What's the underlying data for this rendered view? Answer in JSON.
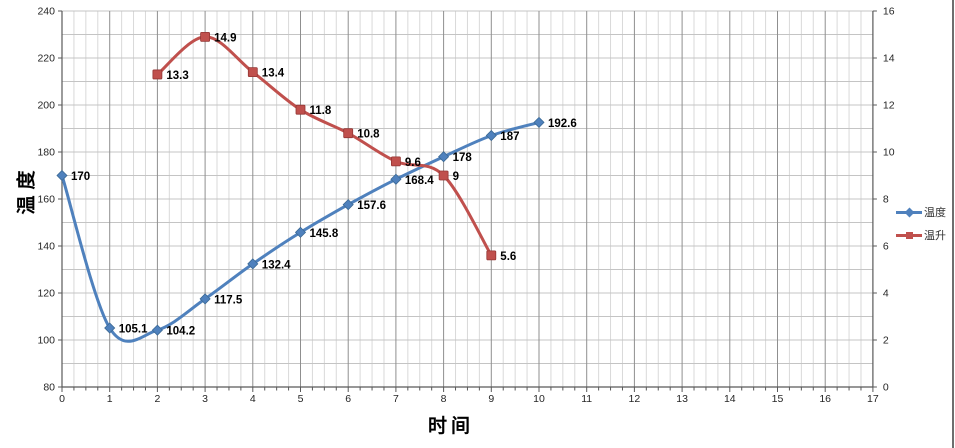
{
  "chart_data": {
    "type": "line",
    "title": "",
    "xlabel": "时间",
    "ylabel": "温度",
    "grid": {
      "minor_x_step": 0.25,
      "major_x_step": 1,
      "horizontal_step": 10,
      "grid_on": true
    },
    "axes": {
      "x": {
        "min": 0,
        "max": 17,
        "tick_values": [
          0,
          1,
          2,
          3,
          4,
          5,
          6,
          7,
          8,
          9,
          10,
          11,
          12,
          13,
          14,
          15,
          16,
          17
        ],
        "tick_labels": [
          "0",
          "1",
          "2",
          "3",
          "4",
          "5",
          "6",
          "7",
          "8",
          "9",
          "10",
          "11",
          "12",
          "13",
          "14",
          "15",
          "16",
          "17"
        ]
      },
      "left": {
        "min": 80,
        "max": 240,
        "tick_values": [
          80,
          100,
          120,
          140,
          160,
          180,
          200,
          220,
          240
        ],
        "tick_labels": [
          "80",
          "100",
          "120",
          "140",
          "160",
          "180",
          "200",
          "220",
          "240"
        ]
      },
      "right": {
        "min": 0,
        "max": 16,
        "tick_values": [
          0,
          2,
          4,
          6,
          8,
          10,
          12,
          14,
          16
        ],
        "tick_labels": [
          "0",
          "2",
          "4",
          "6",
          "8",
          "10",
          "12",
          "14",
          "16"
        ]
      }
    },
    "series": [
      {
        "name": "温度",
        "axis": "left",
        "marker": "diamond",
        "color": "#4F81BD",
        "marker_stroke": "#3A6893",
        "x": [
          0,
          1,
          2,
          3,
          4,
          5,
          6,
          7,
          8,
          9,
          10
        ],
        "values": [
          170,
          105.1,
          104.2,
          117.5,
          132.4,
          145.8,
          157.6,
          168.4,
          178,
          187,
          192.6
        ],
        "labels": [
          "170",
          "105.1",
          "104.2",
          "117.5",
          "132.4",
          "145.8",
          "157.6",
          "168.4",
          "178",
          "187",
          "192.6"
        ]
      },
      {
        "name": "温升",
        "axis": "right",
        "marker": "square",
        "color": "#C0504D",
        "marker_stroke": "#943634",
        "x": [
          2,
          3,
          4,
          5,
          6,
          7,
          8,
          9
        ],
        "values": [
          13.3,
          14.9,
          13.4,
          11.8,
          10.8,
          9.6,
          9,
          5.6
        ],
        "labels": [
          "13.3",
          "14.9",
          "13.4",
          "11.8",
          "10.8",
          "9.6",
          "9",
          "5.6"
        ]
      }
    ],
    "legend": {
      "position": "right",
      "items": [
        {
          "label": "温度",
          "color": "#4F81BD",
          "marker": "diamond"
        },
        {
          "label": "温升",
          "color": "#C0504D",
          "marker": "square"
        }
      ]
    },
    "style_colors": {
      "minor_gridline": "#D9D9D9",
      "major_gridline": "#8F8F8F",
      "horizontal_gridline": "#C4C4C4",
      "axis_line": "#595959",
      "tick_label": "#262626",
      "data_label": "#000000"
    }
  }
}
